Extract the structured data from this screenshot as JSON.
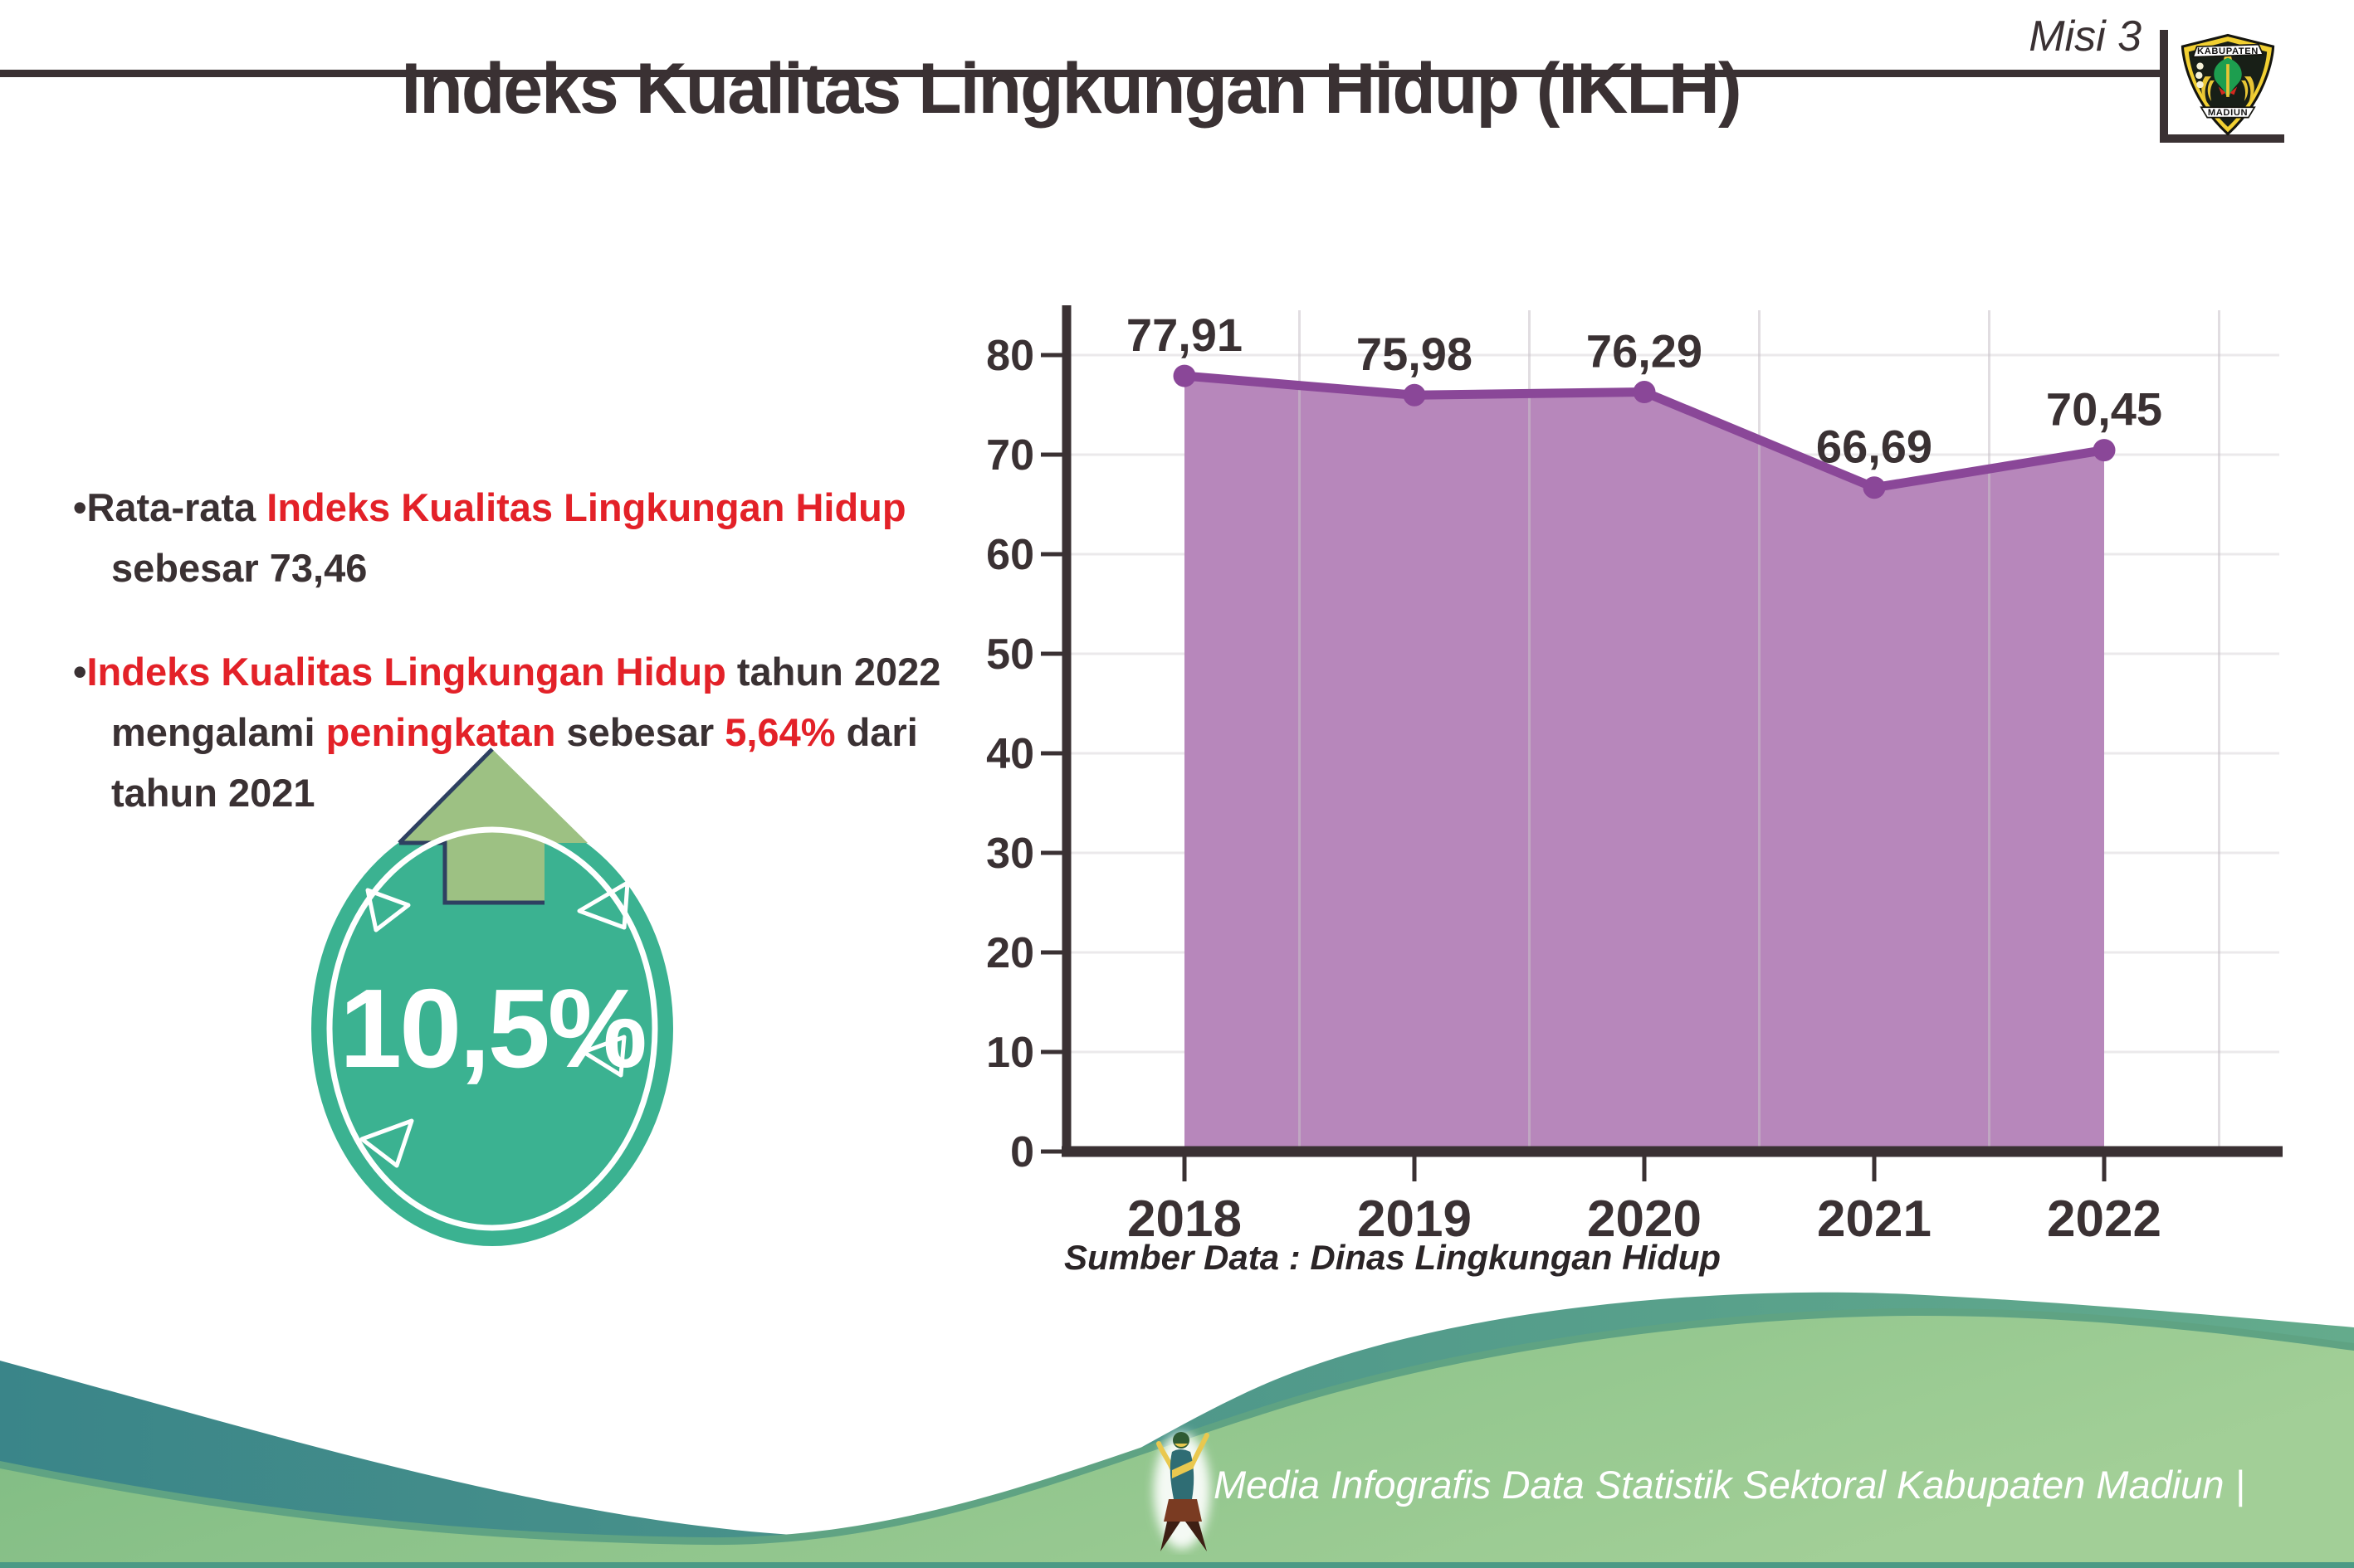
{
  "page": {
    "misi_label": "Misi 3",
    "title": "Indeks Kualitas Lingkungan Hidup (IKLH)"
  },
  "bullets": {
    "b1l1": [
      {
        "t": "•Rata-rata ",
        "color": "dark"
      },
      {
        "t": "Indeks Kualitas Lingkungan Hidup",
        "color": "red"
      }
    ],
    "b1l2": "sebesar 73,46",
    "b2l1": [
      {
        "t": "•",
        "color": "dark"
      },
      {
        "t": "Indeks Kualitas Lingkungan Hidup",
        "color": "red"
      },
      {
        "t": " tahun 2022",
        "color": "dark"
      }
    ],
    "b2l2": [
      {
        "t": "mengalami ",
        "color": "dark"
      },
      {
        "t": "peningkatan",
        "color": "red"
      },
      {
        "t": " sebesar ",
        "color": "dark"
      },
      {
        "t": "5,64%",
        "color": "red"
      },
      {
        "t": " dari",
        "color": "dark"
      }
    ],
    "b2l3": "tahun 2021"
  },
  "badge": {
    "value": "10,5%",
    "circle_color": "#3bb291",
    "arrow_color": "#9dc183",
    "arrow_outline_color": "#2e4061"
  },
  "chart_data": {
    "type": "area",
    "title": "",
    "categories": [
      "2018",
      "2019",
      "2020",
      "2021",
      "2022"
    ],
    "series": [
      {
        "name": "IKLH",
        "values": [
          77.91,
          75.98,
          76.29,
          66.69,
          70.45
        ],
        "labels": [
          "77,91",
          "75,98",
          "76,29",
          "66,69",
          "70,45"
        ]
      }
    ],
    "xlabel": "",
    "ylabel": "",
    "ylim": [
      0,
      80
    ],
    "yticks": [
      0,
      10,
      20,
      30,
      40,
      50,
      60,
      70,
      80
    ],
    "grid": true,
    "legend": false,
    "area_color": "#b787bb",
    "line_color": "#8a4798",
    "marker_color": "#8a4798",
    "axis_color": "#3a3133",
    "label_color": "#3a3133"
  },
  "source_note": "Sumber Data : Dinas Lingkungan Hidup",
  "footer": {
    "text": "Media Infografis Data Statistik Sektoral Kabupaten Madiun |"
  },
  "logo": {
    "top_banner": "KABUPATEN",
    "bottom_banner": "MADIUN"
  },
  "colors": {
    "dark_text": "#3a3133",
    "red_text": "#e32128",
    "footer_teal": "#3a8589",
    "footer_green": "#8ec58a"
  }
}
